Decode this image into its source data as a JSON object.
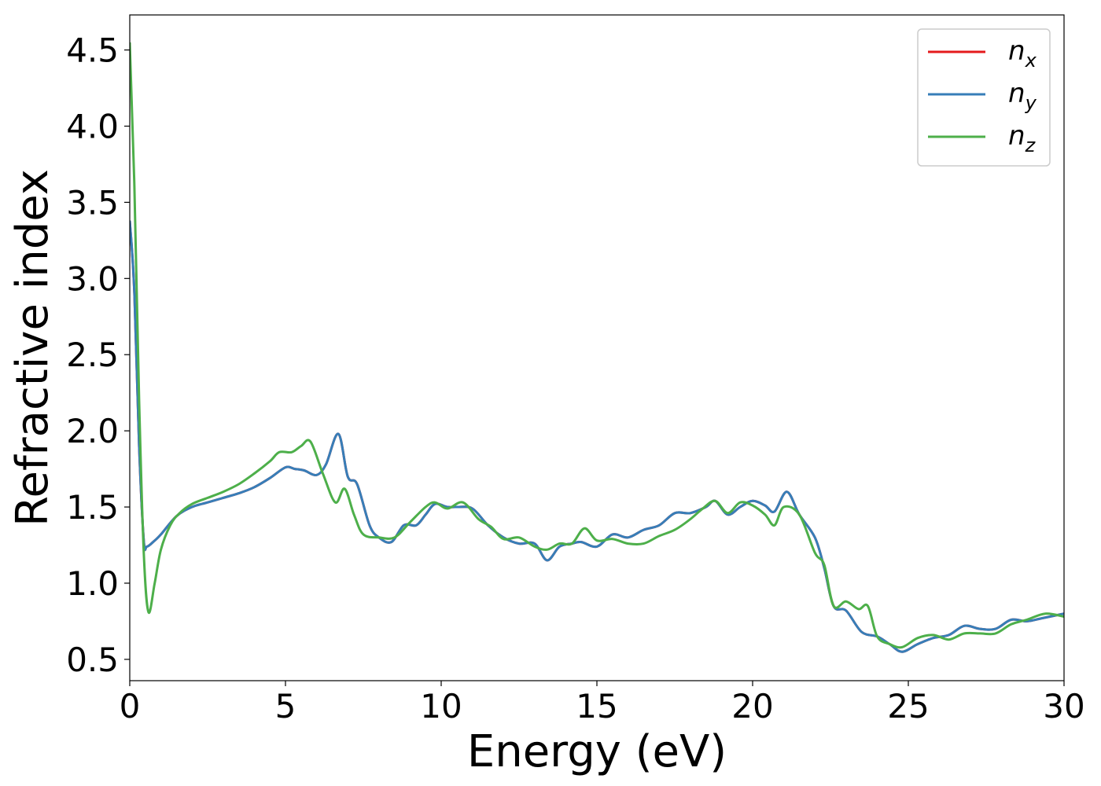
{
  "chart_data": {
    "type": "line",
    "xlabel": "Energy (eV)",
    "ylabel": "Refractive index",
    "xlim": [
      0,
      30
    ],
    "ylim": [
      0.36,
      4.73
    ],
    "x_ticks": [
      "0",
      "5",
      "10",
      "15",
      "20",
      "25",
      "30"
    ],
    "y_ticks": [
      "0.5",
      "1.0",
      "1.5",
      "2.0",
      "2.5",
      "3.0",
      "3.5",
      "4.0",
      "4.5"
    ],
    "grid": false,
    "legend_position": "top-right",
    "series": [
      {
        "name": "n",
        "subscript": "x",
        "color": "#e41a1c",
        "points": [
          [
            0,
            3.38
          ],
          [
            0.15,
            2.9
          ],
          [
            0.3,
            1.9
          ],
          [
            0.45,
            1.28
          ],
          [
            0.55,
            1.24
          ],
          [
            0.8,
            1.28
          ],
          [
            1.0,
            1.32
          ],
          [
            1.5,
            1.44
          ],
          [
            2.0,
            1.5
          ],
          [
            2.5,
            1.53
          ],
          [
            3.0,
            1.56
          ],
          [
            3.5,
            1.59
          ],
          [
            4.0,
            1.63
          ],
          [
            4.5,
            1.69
          ],
          [
            5.0,
            1.76
          ],
          [
            5.3,
            1.75
          ],
          [
            5.6,
            1.74
          ],
          [
            6.0,
            1.71
          ],
          [
            6.3,
            1.78
          ],
          [
            6.7,
            1.98
          ],
          [
            7.0,
            1.7
          ],
          [
            7.3,
            1.65
          ],
          [
            7.7,
            1.38
          ],
          [
            8.0,
            1.3
          ],
          [
            8.4,
            1.27
          ],
          [
            8.8,
            1.38
          ],
          [
            9.2,
            1.38
          ],
          [
            9.5,
            1.45
          ],
          [
            9.8,
            1.52
          ],
          [
            10.2,
            1.5
          ],
          [
            10.5,
            1.5
          ],
          [
            11.0,
            1.49
          ],
          [
            11.5,
            1.38
          ],
          [
            12.0,
            1.3
          ],
          [
            12.5,
            1.26
          ],
          [
            13.0,
            1.26
          ],
          [
            13.4,
            1.15
          ],
          [
            13.8,
            1.24
          ],
          [
            14.2,
            1.26
          ],
          [
            14.5,
            1.27
          ],
          [
            15.0,
            1.24
          ],
          [
            15.5,
            1.32
          ],
          [
            16.0,
            1.3
          ],
          [
            16.5,
            1.35
          ],
          [
            17.0,
            1.38
          ],
          [
            17.5,
            1.46
          ],
          [
            18.0,
            1.46
          ],
          [
            18.5,
            1.5
          ],
          [
            18.8,
            1.54
          ],
          [
            19.2,
            1.45
          ],
          [
            19.6,
            1.5
          ],
          [
            20.0,
            1.54
          ],
          [
            20.4,
            1.51
          ],
          [
            20.7,
            1.47
          ],
          [
            21.1,
            1.6
          ],
          [
            21.5,
            1.45
          ],
          [
            22.0,
            1.3
          ],
          [
            22.3,
            1.1
          ],
          [
            22.6,
            0.85
          ],
          [
            23.0,
            0.82
          ],
          [
            23.5,
            0.68
          ],
          [
            24.0,
            0.65
          ],
          [
            24.4,
            0.6
          ],
          [
            24.8,
            0.55
          ],
          [
            25.3,
            0.6
          ],
          [
            25.8,
            0.64
          ],
          [
            26.3,
            0.66
          ],
          [
            26.8,
            0.72
          ],
          [
            27.3,
            0.7
          ],
          [
            27.8,
            0.7
          ],
          [
            28.3,
            0.76
          ],
          [
            28.8,
            0.75
          ],
          [
            29.3,
            0.77
          ],
          [
            30.0,
            0.8
          ]
        ]
      },
      {
        "name": "n",
        "subscript": "y",
        "color": "#377eb8",
        "points": [
          [
            0,
            3.38
          ],
          [
            0.15,
            2.9
          ],
          [
            0.3,
            1.9
          ],
          [
            0.45,
            1.28
          ],
          [
            0.55,
            1.24
          ],
          [
            0.8,
            1.28
          ],
          [
            1.0,
            1.32
          ],
          [
            1.5,
            1.44
          ],
          [
            2.0,
            1.5
          ],
          [
            2.5,
            1.53
          ],
          [
            3.0,
            1.56
          ],
          [
            3.5,
            1.59
          ],
          [
            4.0,
            1.63
          ],
          [
            4.5,
            1.69
          ],
          [
            5.0,
            1.76
          ],
          [
            5.3,
            1.75
          ],
          [
            5.6,
            1.74
          ],
          [
            6.0,
            1.71
          ],
          [
            6.3,
            1.78
          ],
          [
            6.7,
            1.98
          ],
          [
            7.0,
            1.7
          ],
          [
            7.3,
            1.65
          ],
          [
            7.7,
            1.38
          ],
          [
            8.0,
            1.3
          ],
          [
            8.4,
            1.27
          ],
          [
            8.8,
            1.38
          ],
          [
            9.2,
            1.38
          ],
          [
            9.5,
            1.45
          ],
          [
            9.8,
            1.52
          ],
          [
            10.2,
            1.5
          ],
          [
            10.5,
            1.5
          ],
          [
            11.0,
            1.49
          ],
          [
            11.5,
            1.38
          ],
          [
            12.0,
            1.3
          ],
          [
            12.5,
            1.26
          ],
          [
            13.0,
            1.26
          ],
          [
            13.4,
            1.15
          ],
          [
            13.8,
            1.24
          ],
          [
            14.2,
            1.26
          ],
          [
            14.5,
            1.27
          ],
          [
            15.0,
            1.24
          ],
          [
            15.5,
            1.32
          ],
          [
            16.0,
            1.3
          ],
          [
            16.5,
            1.35
          ],
          [
            17.0,
            1.38
          ],
          [
            17.5,
            1.46
          ],
          [
            18.0,
            1.46
          ],
          [
            18.5,
            1.5
          ],
          [
            18.8,
            1.54
          ],
          [
            19.2,
            1.45
          ],
          [
            19.6,
            1.5
          ],
          [
            20.0,
            1.54
          ],
          [
            20.4,
            1.51
          ],
          [
            20.7,
            1.47
          ],
          [
            21.1,
            1.6
          ],
          [
            21.5,
            1.45
          ],
          [
            22.0,
            1.3
          ],
          [
            22.3,
            1.1
          ],
          [
            22.6,
            0.85
          ],
          [
            23.0,
            0.82
          ],
          [
            23.5,
            0.68
          ],
          [
            24.0,
            0.65
          ],
          [
            24.4,
            0.6
          ],
          [
            24.8,
            0.55
          ],
          [
            25.3,
            0.6
          ],
          [
            25.8,
            0.64
          ],
          [
            26.3,
            0.66
          ],
          [
            26.8,
            0.72
          ],
          [
            27.3,
            0.7
          ],
          [
            27.8,
            0.7
          ],
          [
            28.3,
            0.76
          ],
          [
            28.8,
            0.75
          ],
          [
            29.3,
            0.77
          ],
          [
            30.0,
            0.8
          ]
        ]
      },
      {
        "name": "n",
        "subscript": "z",
        "color": "#4daf4a",
        "points": [
          [
            0,
            4.55
          ],
          [
            0.15,
            3.6
          ],
          [
            0.3,
            2.2
          ],
          [
            0.45,
            1.2
          ],
          [
            0.6,
            0.81
          ],
          [
            0.8,
            1.0
          ],
          [
            1.0,
            1.22
          ],
          [
            1.3,
            1.38
          ],
          [
            1.6,
            1.46
          ],
          [
            2.0,
            1.52
          ],
          [
            2.5,
            1.56
          ],
          [
            3.0,
            1.6
          ],
          [
            3.5,
            1.65
          ],
          [
            4.0,
            1.72
          ],
          [
            4.5,
            1.8
          ],
          [
            4.8,
            1.86
          ],
          [
            5.2,
            1.86
          ],
          [
            5.5,
            1.9
          ],
          [
            5.8,
            1.93
          ],
          [
            6.2,
            1.72
          ],
          [
            6.6,
            1.53
          ],
          [
            6.9,
            1.62
          ],
          [
            7.2,
            1.45
          ],
          [
            7.5,
            1.32
          ],
          [
            8.0,
            1.3
          ],
          [
            8.5,
            1.3
          ],
          [
            9.0,
            1.4
          ],
          [
            9.5,
            1.5
          ],
          [
            9.8,
            1.53
          ],
          [
            10.2,
            1.49
          ],
          [
            10.7,
            1.53
          ],
          [
            11.2,
            1.42
          ],
          [
            11.6,
            1.37
          ],
          [
            12.0,
            1.29
          ],
          [
            12.5,
            1.3
          ],
          [
            13.0,
            1.24
          ],
          [
            13.4,
            1.22
          ],
          [
            13.8,
            1.26
          ],
          [
            14.2,
            1.26
          ],
          [
            14.6,
            1.36
          ],
          [
            15.0,
            1.28
          ],
          [
            15.5,
            1.29
          ],
          [
            16.0,
            1.26
          ],
          [
            16.5,
            1.26
          ],
          [
            17.0,
            1.31
          ],
          [
            17.5,
            1.35
          ],
          [
            18.0,
            1.42
          ],
          [
            18.4,
            1.49
          ],
          [
            18.8,
            1.54
          ],
          [
            19.2,
            1.46
          ],
          [
            19.6,
            1.53
          ],
          [
            20.0,
            1.51
          ],
          [
            20.4,
            1.45
          ],
          [
            20.7,
            1.38
          ],
          [
            21.0,
            1.5
          ],
          [
            21.5,
            1.45
          ],
          [
            22.0,
            1.2
          ],
          [
            22.3,
            1.12
          ],
          [
            22.6,
            0.85
          ],
          [
            23.0,
            0.88
          ],
          [
            23.4,
            0.83
          ],
          [
            23.7,
            0.85
          ],
          [
            24.0,
            0.65
          ],
          [
            24.4,
            0.6
          ],
          [
            24.8,
            0.58
          ],
          [
            25.3,
            0.64
          ],
          [
            25.8,
            0.66
          ],
          [
            26.3,
            0.63
          ],
          [
            26.8,
            0.67
          ],
          [
            27.3,
            0.67
          ],
          [
            27.8,
            0.67
          ],
          [
            28.3,
            0.73
          ],
          [
            28.8,
            0.76
          ],
          [
            29.4,
            0.8
          ],
          [
            30.0,
            0.78
          ]
        ]
      }
    ]
  }
}
